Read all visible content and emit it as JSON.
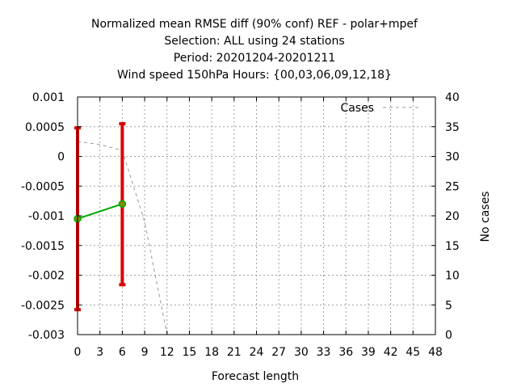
{
  "title_lines": [
    "Normalized mean RMSE diff (90% conf) REF - polar+mpef",
    "Selection: ALL using    24 stations",
    "Period: 20201204-20201211",
    "Wind speed 150hPa   Hours: {00,03,06,09,12,18}"
  ],
  "chart_data": {
    "type": "line",
    "xlabel": "Forecast length",
    "y2label": "No cases",
    "xlim": [
      0,
      48
    ],
    "ylim": [
      -0.003,
      0.001
    ],
    "y2lim": [
      0,
      40
    ],
    "grid": true,
    "legend_position": "top-right",
    "x_ticks": [
      0,
      3,
      6,
      9,
      12,
      15,
      18,
      21,
      24,
      27,
      30,
      33,
      36,
      39,
      42,
      45,
      48
    ],
    "x_tick_labels": [
      "0",
      "3",
      "6",
      "9",
      "12",
      "15",
      "18",
      "21",
      "24",
      "27",
      "30",
      "33",
      "36",
      "39",
      "42",
      "45",
      "48"
    ],
    "y_ticks": [
      0.001,
      0.0005,
      0,
      -0.0005,
      -0.001,
      -0.0015,
      -0.002,
      -0.0025,
      -0.003
    ],
    "y_tick_labels": [
      "0.001",
      "0.0005",
      "0",
      "-0.0005",
      "-0.001",
      "-0.0015",
      "-0.002",
      "-0.0025",
      "-0.003"
    ],
    "y2_ticks": [
      40,
      35,
      30,
      25,
      20,
      15,
      10,
      5,
      0
    ],
    "y2_tick_labels": [
      "40",
      "35",
      "30",
      "25",
      "20",
      "15",
      "10",
      "5",
      "0"
    ],
    "series": [
      {
        "color": "#00aa00",
        "marker_color": "#888800",
        "x": [
          0,
          6
        ],
        "y": [
          -0.00105,
          -0.0008
        ],
        "error_low": [
          -0.00258,
          -0.00216
        ],
        "error_high": [
          0.00048,
          0.00055
        ],
        "error_color": "#dd0000"
      },
      {
        "name": "Cases",
        "axis": "right",
        "style": "dashed",
        "color": "#999999",
        "x": [
          0,
          3,
          6,
          9,
          12,
          15,
          18,
          21,
          24,
          27,
          30,
          33,
          36,
          39,
          42,
          45,
          48
        ],
        "y": [
          32.5,
          32,
          31,
          19,
          0,
          0,
          0,
          0,
          0,
          0,
          0,
          0,
          0,
          0,
          0,
          0,
          0
        ]
      }
    ]
  }
}
